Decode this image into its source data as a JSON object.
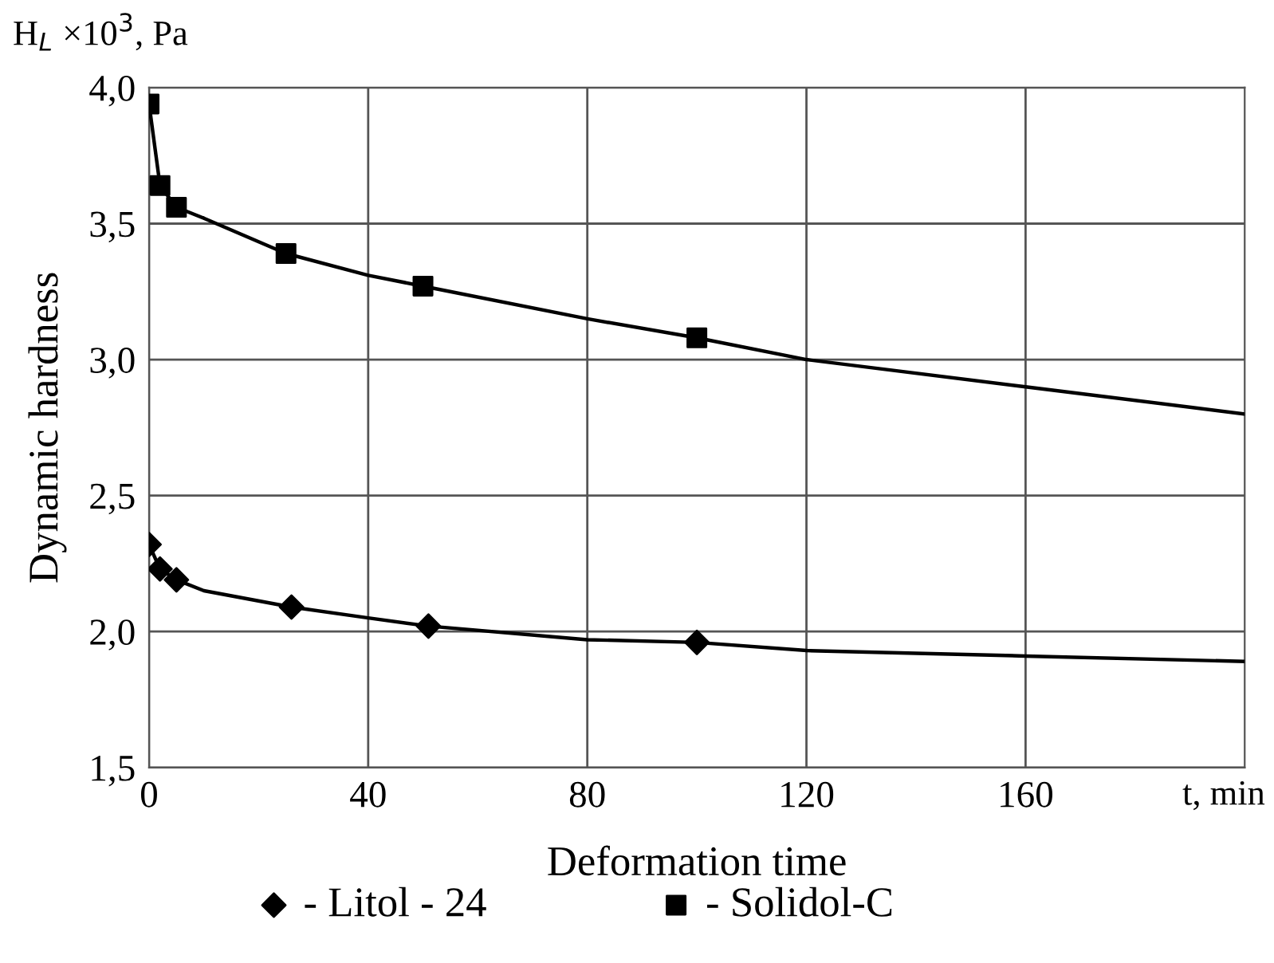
{
  "chart_data": {
    "type": "scatter",
    "xlabel": "Deformation time",
    "ylabel": "Dynamic hardness",
    "annotations": [
      "H$_{L}$ ×10$^{3}$, Pa",
      "t, min"
    ],
    "xlim": [
      0,
      200
    ],
    "xticks": [
      0,
      40,
      80,
      120,
      160
    ],
    "ylim": [
      1.5,
      4.0
    ],
    "yticks": [
      {
        "value": 1.5,
        "label": "1,5"
      },
      {
        "value": 2.0,
        "label": "2,0"
      },
      {
        "value": 2.5,
        "label": "2,5"
      },
      {
        "value": 3.0,
        "label": "3,0"
      },
      {
        "value": 3.5,
        "label": "3,5"
      },
      {
        "value": 4.0,
        "label": "4,0"
      }
    ],
    "grid": true,
    "legend": "bottom",
    "series": [
      {
        "type": "line",
        "color": "#000000",
        "marker": "none",
        "x": [
          0,
          2,
          5,
          10,
          25,
          40,
          50,
          80,
          100,
          120,
          160,
          200
        ],
        "values": [
          3.94,
          3.64,
          3.56,
          3.52,
          3.39,
          3.31,
          3.27,
          3.15,
          3.08,
          3.0,
          2.9,
          2.8
        ]
      },
      {
        "type": "line",
        "color": "#000000",
        "marker": "none",
        "x": [
          0,
          2,
          5,
          10,
          26,
          40,
          51,
          80,
          100,
          120,
          160,
          200
        ],
        "values": [
          2.32,
          2.23,
          2.19,
          2.15,
          2.09,
          2.05,
          2.02,
          1.97,
          1.96,
          1.93,
          1.91,
          1.89
        ]
      },
      {
        "name": "- Litol - 24",
        "color": "#000000",
        "marker": "diamond",
        "x": [
          0,
          2,
          5,
          26,
          51,
          100
        ],
        "values": [
          2.32,
          2.23,
          2.19,
          2.09,
          2.02,
          1.96
        ]
      },
      {
        "name": "- Solidol-C",
        "color": "#000000",
        "marker": "square",
        "x": [
          0,
          2,
          5,
          25,
          50,
          100
        ],
        "values": [
          3.94,
          3.64,
          3.56,
          3.39,
          3.27,
          3.08
        ]
      }
    ]
  }
}
